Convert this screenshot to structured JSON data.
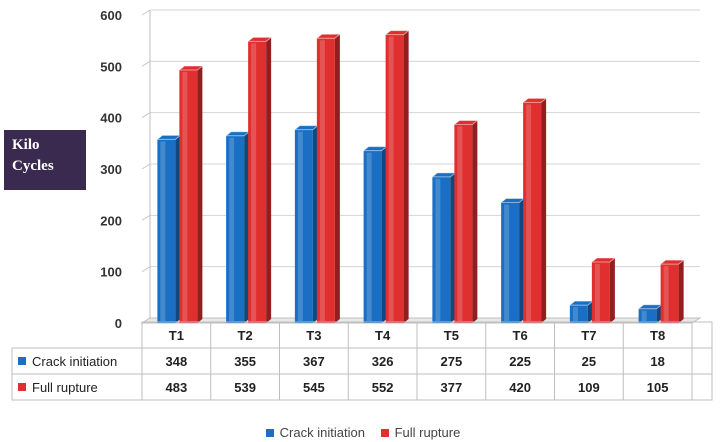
{
  "chart_data": {
    "type": "bar",
    "categories": [
      "T1",
      "T2",
      "T3",
      "T4",
      "T5",
      "T6",
      "T7",
      "T8"
    ],
    "series": [
      {
        "name": "Crack initiation",
        "values": [
          348,
          355,
          367,
          326,
          275,
          225,
          25,
          18
        ],
        "color": "#1a6fc4"
      },
      {
        "name": "Full rupture",
        "values": [
          483,
          539,
          545,
          552,
          377,
          420,
          109,
          105
        ],
        "color": "#e02f2f"
      }
    ],
    "title": "",
    "xlabel": "",
    "ylabel": "Kilo Cycles",
    "ylabel_lines": [
      "Kilo",
      "Cycles"
    ],
    "ylim": [
      0,
      600
    ],
    "yticks": [
      0,
      100,
      200,
      300,
      400,
      500,
      600
    ],
    "grid": true,
    "legend": "bottom",
    "data_table": true
  }
}
